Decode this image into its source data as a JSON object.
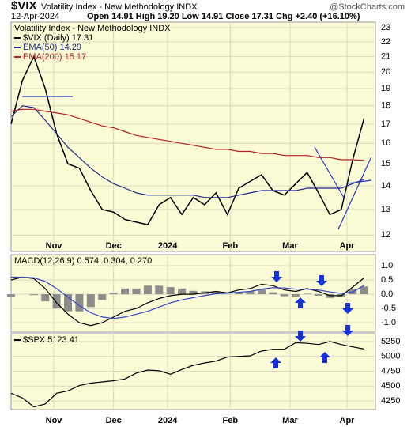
{
  "chart_data": [
    {
      "type": "line",
      "symbol": "$VIX",
      "title": "Volatility Index - New Methodology INDX",
      "date": "12-Apr-2024",
      "quote": "Open 14.91 High 19.20 Low 14.91 Close 17.31 Chg +2.40 (+16.10%)",
      "watermark": "@StockCharts.com",
      "log_scale": true,
      "grid": true,
      "x": [
        0,
        4,
        8,
        12,
        16,
        20,
        24,
        28,
        32,
        36,
        40,
        44,
        48,
        52,
        56,
        60,
        64,
        68,
        72,
        76,
        80,
        84,
        88,
        92,
        96,
        100,
        104,
        108,
        112,
        116,
        120,
        124
      ],
      "xlim": [
        0,
        128
      ],
      "xticks": [
        {
          "value": 15,
          "label": "Nov"
        },
        {
          "value": 36,
          "label": "Dec"
        },
        {
          "value": 55,
          "label": "2024"
        },
        {
          "value": 77,
          "label": "Feb"
        },
        {
          "value": 98,
          "label": "Mar"
        },
        {
          "value": 118,
          "label": "Apr"
        }
      ],
      "ylim": [
        11.4,
        23.4
      ],
      "yticks": [
        12,
        13,
        14,
        15,
        16,
        17,
        18,
        19,
        20,
        21,
        22,
        23
      ],
      "series": [
        {
          "name": "$VIX (Daily) 17.31",
          "color": "#000000",
          "values": [
            17.0,
            19.5,
            21.0,
            19.0,
            16.5,
            15.0,
            14.8,
            13.8,
            13.0,
            12.9,
            12.6,
            12.5,
            12.4,
            13.2,
            13.5,
            12.8,
            13.5,
            13.2,
            13.7,
            12.8,
            13.9,
            14.2,
            14.5,
            13.8,
            13.6,
            14.1,
            14.6,
            13.7,
            12.8,
            13.0,
            15.2,
            17.31
          ]
        },
        {
          "name": "EMA(50) 14.29",
          "color": "#1f2b8e",
          "values": [
            17.4,
            18.0,
            17.9,
            17.2,
            16.5,
            15.8,
            15.3,
            14.8,
            14.4,
            14.1,
            13.9,
            13.7,
            13.6,
            13.6,
            13.6,
            13.6,
            13.6,
            13.5,
            13.5,
            13.5,
            13.6,
            13.7,
            13.8,
            13.8,
            13.8,
            13.8,
            13.9,
            13.9,
            13.9,
            13.9,
            14.1,
            14.29
          ]
        },
        {
          "name": "EMA(200) 15.17",
          "color": "#b22222",
          "values": [
            17.7,
            17.8,
            17.8,
            17.7,
            17.6,
            17.5,
            17.3,
            17.1,
            16.9,
            16.8,
            16.6,
            16.4,
            16.3,
            16.2,
            16.1,
            16.0,
            15.9,
            15.8,
            15.7,
            15.7,
            15.6,
            15.6,
            15.5,
            15.5,
            15.4,
            15.4,
            15.4,
            15.3,
            15.3,
            15.2,
            15.2,
            15.17
          ]
        }
      ]
    },
    {
      "type": "line",
      "title": "MACD(12,26,9) 0.574, 0.304, 0.270",
      "grid": true,
      "x": [
        0,
        4,
        8,
        12,
        16,
        20,
        24,
        28,
        32,
        36,
        40,
        44,
        48,
        52,
        56,
        60,
        64,
        68,
        72,
        76,
        80,
        84,
        88,
        92,
        96,
        100,
        104,
        108,
        112,
        116,
        120,
        124
      ],
      "xlim": [
        0,
        128
      ],
      "ylim": [
        -1.33,
        1.39
      ],
      "yticks": [
        {
          "value": 1,
          "label": "1.0"
        },
        {
          "value": 0.5,
          "label": "0.5"
        },
        {
          "value": 0,
          "label": "0.0"
        },
        {
          "value": -0.5,
          "label": "-0.5"
        },
        {
          "value": -1,
          "label": "-1.0"
        }
      ],
      "series": [
        {
          "style": "histogram",
          "color": "#8c8c8c",
          "values": [
            -0.1,
            0,
            -0.03,
            -0.25,
            -0.5,
            -0.6,
            -0.6,
            -0.45,
            -0.2,
            0.05,
            0.2,
            0.2,
            0.3,
            0.3,
            0.25,
            0.2,
            0.12,
            0.1,
            0.08,
            0.01,
            0.08,
            0.1,
            0.17,
            0.07,
            -0.07,
            -0.08,
            0.02,
            -0.05,
            -0.13,
            -0.08,
            0.17,
            0.27
          ]
        },
        {
          "color": "#000000",
          "values": [
            0.5,
            0.6,
            0.55,
            0.2,
            -0.3,
            -0.7,
            -1.0,
            -1.1,
            -1.0,
            -0.8,
            -0.6,
            -0.5,
            -0.3,
            -0.15,
            -0.05,
            0.0,
            0.0,
            0.05,
            0.1,
            0.05,
            0.15,
            0.2,
            0.35,
            0.3,
            0.15,
            0.1,
            0.2,
            0.1,
            -0.05,
            -0.05,
            0.25,
            0.574
          ]
        },
        {
          "color": "#3344cc",
          "values": [
            0.6,
            0.6,
            0.58,
            0.45,
            0.2,
            -0.1,
            -0.4,
            -0.65,
            -0.8,
            -0.85,
            -0.8,
            -0.7,
            -0.6,
            -0.45,
            -0.3,
            -0.2,
            -0.12,
            -0.05,
            0.02,
            0.04,
            0.07,
            0.1,
            0.18,
            0.23,
            0.22,
            0.18,
            0.18,
            0.15,
            0.08,
            0.03,
            0.08,
            0.304
          ]
        }
      ]
    },
    {
      "type": "line",
      "grid": true,
      "x": [
        0,
        4,
        8,
        12,
        16,
        20,
        24,
        28,
        32,
        36,
        40,
        44,
        48,
        52,
        56,
        60,
        64,
        68,
        72,
        76,
        80,
        84,
        88,
        92,
        96,
        100,
        104,
        108,
        112,
        116,
        120,
        124
      ],
      "xlim": [
        0,
        128
      ],
      "xticks": [
        {
          "value": 15,
          "label": "Nov"
        },
        {
          "value": 36,
          "label": "Dec"
        },
        {
          "value": 55,
          "label": "2024"
        },
        {
          "value": 77,
          "label": "Feb"
        },
        {
          "value": 98,
          "label": "Mar"
        },
        {
          "value": 118,
          "label": "Apr"
        }
      ],
      "ylim": [
        4105,
        5382
      ],
      "yticks": [
        4250,
        4500,
        4750,
        5000,
        5250
      ],
      "series": [
        {
          "name": "$SPX 5123.41",
          "color": "#000000",
          "values": [
            4380,
            4300,
            4150,
            4200,
            4380,
            4420,
            4510,
            4550,
            4570,
            4590,
            4620,
            4720,
            4770,
            4760,
            4700,
            4780,
            4850,
            4890,
            4920,
            4990,
            5000,
            5010,
            5090,
            5120,
            5120,
            5230,
            5220,
            5200,
            5250,
            5200,
            5160,
            5123.41
          ]
        }
      ]
    }
  ]
}
